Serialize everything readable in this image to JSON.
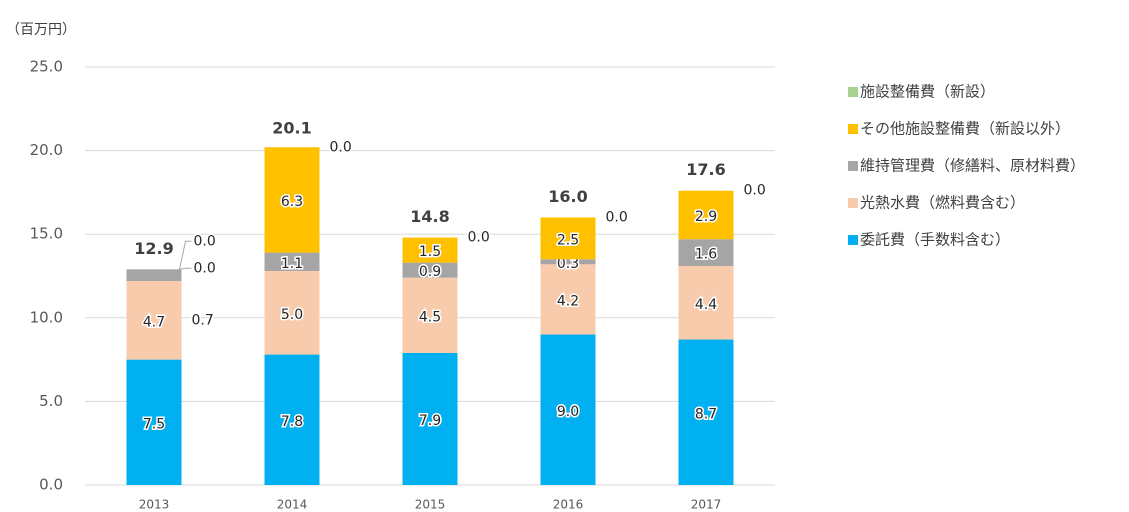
{
  "chart_data": {
    "type": "stacked_bar",
    "y_axis_label": "（百万円）",
    "categories": [
      "2013",
      "2014",
      "2015",
      "2016",
      "2017"
    ],
    "ylim": [
      0,
      25
    ],
    "yticks": [
      {
        "value": 0,
        "label": "0.0"
      },
      {
        "value": 5,
        "label": "5.0"
      },
      {
        "value": 10,
        "label": "10.0"
      },
      {
        "value": 15,
        "label": "15.0"
      },
      {
        "value": 20,
        "label": "20.0"
      },
      {
        "value": 25,
        "label": "25.0"
      }
    ],
    "grid": true,
    "legend": "right",
    "series": [
      {
        "name": "委託費（手数料含む）",
        "color": "#00b0f0",
        "values": [
          7.5,
          7.8,
          7.9,
          9.0,
          8.7
        ],
        "value_labels": [
          "7.5",
          "7.8",
          "7.9",
          "9.0",
          "8.7"
        ]
      },
      {
        "name": "光熱水費（燃料費含む）",
        "color": "#f8cbad",
        "values": [
          4.7,
          5.0,
          4.5,
          4.2,
          4.4
        ],
        "value_labels": [
          "4.7",
          "5.0",
          "4.5",
          "4.2",
          "4.4"
        ]
      },
      {
        "name": "維持管理費（修繕料、原材料費）",
        "color": "#a5a5a5",
        "values": [
          0.7,
          1.1,
          0.9,
          0.3,
          1.6
        ],
        "value_labels": [
          "0.7",
          "1.1",
          "0.9",
          "0.3",
          "1.6"
        ]
      },
      {
        "name": "その他施設整備費（新設以外）",
        "color": "#ffc000",
        "values": [
          0.0,
          6.3,
          1.5,
          2.5,
          2.9
        ],
        "value_labels": [
          "0.0",
          "6.3",
          "1.5",
          "2.5",
          "2.9"
        ]
      },
      {
        "name": "施設整備費（新設）",
        "color": "#a9d18e",
        "values": [
          0.0,
          0.0,
          0.0,
          0.0,
          0.0
        ],
        "value_labels": [
          "0.0",
          "0.0",
          "0.0",
          "0.0",
          "0.0"
        ]
      }
    ],
    "totals": [
      12.9,
      20.1,
      14.8,
      16.0,
      17.6
    ],
    "total_labels": [
      "12.9",
      "20.1",
      "14.8",
      "16.0",
      "17.6"
    ]
  }
}
